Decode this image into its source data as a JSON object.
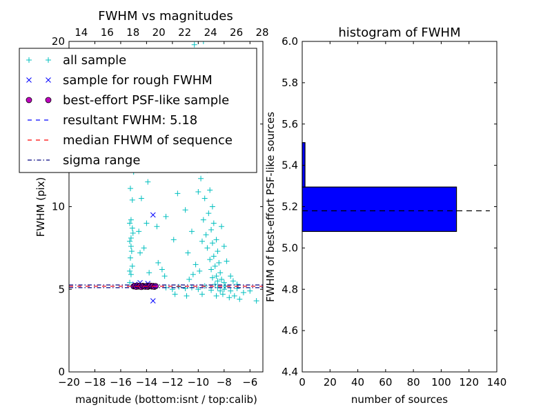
{
  "chart_data": [
    {
      "type": "scatter",
      "title": "FWHM vs magnitudes",
      "xlabel": "magnitude (bottom:isnt / top:calib)",
      "ylabel": "FWHM (pix)",
      "xlim": [
        -20,
        -5
      ],
      "ylim": [
        0,
        20
      ],
      "xticks": [
        "−20",
        "−18",
        "−16",
        "−14",
        "−12",
        "−10",
        "−8",
        "−6"
      ],
      "xtick_values": [
        -20,
        -18,
        -16,
        -14,
        -12,
        -10,
        -8,
        -6
      ],
      "yticks": [
        "0",
        "5",
        "10",
        "15",
        "20"
      ],
      "ytick_values": [
        0,
        5,
        10,
        15,
        20
      ],
      "top_xticks": [
        "14",
        "16",
        "18",
        "20",
        "22",
        "24",
        "26",
        "28"
      ],
      "top_xtick_values": [
        14,
        16,
        18,
        20,
        22,
        24,
        26,
        28
      ],
      "top_offset": 33.05,
      "grid": false,
      "legend_position": "upper-left (outside, overlapping)",
      "legend": [
        {
          "label": "all sample",
          "marker": "plus",
          "color": "#00BFBF"
        },
        {
          "label": "sample for rough FWHM",
          "marker": "x",
          "color": "#0000FF"
        },
        {
          "label": "best-effort PSF-like sample",
          "marker": "circle",
          "color": "#BF00BF"
        },
        {
          "label": "resultant FWHM: 5.18",
          "marker": "dash",
          "color": "#0000FF"
        },
        {
          "label": "median FHWM of sequence",
          "marker": "dash",
          "color": "#FF0000"
        },
        {
          "label": "sigma range",
          "marker": "dashdot",
          "color": "#000080"
        }
      ],
      "series": [
        {
          "name": "all sample",
          "color": "#00BFBF",
          "points": [
            [
              -15.3,
              5.4
            ],
            [
              -15.2,
              5.9
            ],
            [
              -15.1,
              6.4
            ],
            [
              -15.25,
              6.9
            ],
            [
              -15.15,
              7.3
            ],
            [
              -15.3,
              7.9
            ],
            [
              -15.2,
              8.1
            ],
            [
              -15.05,
              8.4
            ],
            [
              -15.3,
              9.0
            ],
            [
              -15.2,
              9.2
            ],
            [
              -15.1,
              10.4
            ],
            [
              -15.25,
              11.1
            ],
            [
              -15.0,
              12.1
            ],
            [
              -15.2,
              12.6
            ],
            [
              -15.1,
              13.6
            ],
            [
              -15.2,
              14.4
            ],
            [
              -15.0,
              15.4
            ],
            [
              -15.3,
              6.1
            ],
            [
              -15.2,
              7.6
            ],
            [
              -15.1,
              8.7
            ],
            [
              -14.2,
              7.5
            ],
            [
              -14.0,
              9.0
            ],
            [
              -13.8,
              6.0
            ],
            [
              -14.4,
              10.5
            ],
            [
              -13.6,
              13.0
            ],
            [
              -13.2,
              8.8
            ],
            [
              -14.6,
              8.5
            ],
            [
              -13.9,
              11.5
            ],
            [
              -12.8,
              6.2
            ],
            [
              -12.6,
              5.8
            ],
            [
              -14.5,
              7.2
            ],
            [
              -13.3,
              15.0
            ],
            [
              -12.2,
              12.5
            ],
            [
              -11.6,
              10.8
            ],
            [
              -12.5,
              9.4
            ],
            [
              -11.2,
              14.0
            ],
            [
              -11.9,
              8.0
            ],
            [
              -13.1,
              6.6
            ],
            [
              -14.8,
              16.5
            ],
            [
              -12.9,
              17.2
            ],
            [
              -10.3,
              19.8
            ],
            [
              -9.6,
              20.0
            ],
            [
              -9.9,
              18.0
            ],
            [
              -9.2,
              17.5
            ],
            [
              -9.5,
              16.0
            ],
            [
              -10.1,
              15.2
            ],
            [
              -9.4,
              14.5
            ],
            [
              -9.7,
              13.8
            ],
            [
              -9.0,
              13.0
            ],
            [
              -9.3,
              12.2
            ],
            [
              -9.8,
              11.7
            ],
            [
              -9.1,
              11.0
            ],
            [
              -9.5,
              10.5
            ],
            [
              -8.9,
              10.0
            ],
            [
              -9.2,
              9.6
            ],
            [
              -9.6,
              9.2
            ],
            [
              -8.8,
              9.0
            ],
            [
              -9.0,
              8.6
            ],
            [
              -9.4,
              8.3
            ],
            [
              -8.6,
              8.0
            ],
            [
              -8.9,
              7.8
            ],
            [
              -9.3,
              7.5
            ],
            [
              -8.5,
              7.3
            ],
            [
              -8.8,
              7.0
            ],
            [
              -9.1,
              6.8
            ],
            [
              -8.4,
              6.6
            ],
            [
              -8.7,
              6.4
            ],
            [
              -9.0,
              6.2
            ],
            [
              -8.3,
              6.0
            ],
            [
              -8.6,
              5.8
            ],
            [
              -8.9,
              5.7
            ],
            [
              -8.2,
              5.6
            ],
            [
              -8.5,
              5.5
            ],
            [
              -8.0,
              5.4
            ],
            [
              -8.7,
              5.3
            ],
            [
              -7.9,
              5.2
            ],
            [
              -8.3,
              4.9
            ],
            [
              -8.1,
              4.7
            ],
            [
              -8.6,
              4.6
            ],
            [
              -7.6,
              4.5
            ],
            [
              -10.5,
              8.5
            ],
            [
              -10.8,
              7.2
            ],
            [
              -10.2,
              6.5
            ],
            [
              -10.6,
              12.8
            ],
            [
              -11.0,
              9.8
            ],
            [
              -10.0,
              10.9
            ],
            [
              -9.7,
              7.9
            ],
            [
              -10.4,
              5.9
            ],
            [
              -9.9,
              6.1
            ],
            [
              -10.7,
              5.6
            ],
            [
              -7.5,
              5.8
            ],
            [
              -7.8,
              6.7
            ],
            [
              -7.3,
              5.5
            ],
            [
              -7.0,
              5.3
            ],
            [
              -8.2,
              8.8
            ],
            [
              -8.0,
              7.6
            ],
            [
              -9.8,
              15.7
            ],
            [
              -9.3,
              18.7
            ],
            [
              -8.9,
              16.8
            ],
            [
              -9.6,
              12.5
            ],
            [
              -12.5,
              5.1
            ],
            [
              -12.0,
              5.0
            ],
            [
              -11.5,
              5.15
            ],
            [
              -11.0,
              5.05
            ],
            [
              -10.5,
              5.1
            ],
            [
              -10.0,
              5.0
            ],
            [
              -9.5,
              5.2
            ],
            [
              -9.0,
              4.95
            ],
            [
              -8.5,
              5.1
            ],
            [
              -8.0,
              5.0
            ],
            [
              -7.5,
              4.9
            ],
            [
              -7.0,
              5.05
            ],
            [
              -6.5,
              4.8
            ],
            [
              -6.0,
              4.9
            ],
            [
              -5.5,
              4.3
            ],
            [
              -11.8,
              4.7
            ],
            [
              -10.9,
              4.6
            ],
            [
              -9.7,
              4.7
            ],
            [
              -7.2,
              4.6
            ],
            [
              -6.8,
              4.4
            ]
          ]
        },
        {
          "name": "sample for rough FWHM",
          "color": "#0000FF",
          "points": [
            [
              -13.5,
              9.5
            ],
            [
              -13.5,
              4.3
            ],
            [
              -14.5,
              5.4
            ],
            [
              -13.9,
              5.35
            ],
            [
              -14.9,
              5.3
            ]
          ]
        },
        {
          "name": "best-effort PSF-like sample",
          "color": "#BF00BF",
          "points": [
            [
              -15.0,
              5.18
            ],
            [
              -14.9,
              5.2
            ],
            [
              -14.8,
              5.15
            ],
            [
              -14.7,
              5.22
            ],
            [
              -14.6,
              5.17
            ],
            [
              -14.5,
              5.2
            ],
            [
              -14.4,
              5.14
            ],
            [
              -14.3,
              5.21
            ],
            [
              -14.2,
              5.18
            ],
            [
              -14.1,
              5.16
            ],
            [
              -14.0,
              5.2
            ],
            [
              -13.9,
              5.15
            ],
            [
              -13.8,
              5.19
            ],
            [
              -13.7,
              5.22
            ],
            [
              -13.6,
              5.17
            ],
            [
              -13.5,
              5.2
            ],
            [
              -13.4,
              5.15
            ],
            [
              -13.3,
              5.19
            ]
          ]
        }
      ],
      "hlines": [
        {
          "name": "resultant FWHM",
          "y": 5.18,
          "color": "#0000FF",
          "style": "dashed"
        },
        {
          "name": "median FHWM of sequence",
          "y": 5.18,
          "color": "#FF0000",
          "style": "dashed"
        },
        {
          "name": "sigma range low",
          "y": 5.1,
          "color": "#000080",
          "style": "dashdot"
        },
        {
          "name": "sigma range high",
          "y": 5.26,
          "color": "#000080",
          "style": "dashdot"
        }
      ]
    },
    {
      "type": "bar",
      "orientation": "horizontal",
      "title": "histogram of FWHM",
      "xlabel": "number of sources",
      "ylabel": "FWHM of best-effort PSF-like sources",
      "xlim": [
        0,
        140
      ],
      "ylim": [
        4.4,
        6.0
      ],
      "xticks": [
        "0",
        "20",
        "40",
        "60",
        "80",
        "100",
        "120",
        "140"
      ],
      "xtick_values": [
        0,
        20,
        40,
        60,
        80,
        100,
        120,
        140
      ],
      "yticks": [
        "4.4",
        "4.6",
        "4.8",
        "5.0",
        "5.2",
        "5.4",
        "5.6",
        "5.8",
        "6.0"
      ],
      "ytick_values": [
        4.4,
        4.6,
        4.8,
        5.0,
        5.2,
        5.4,
        5.6,
        5.8,
        6.0
      ],
      "bins": [
        [
          5.08,
          5.295
        ],
        [
          5.295,
          5.51
        ]
      ],
      "values": [
        111,
        2
      ],
      "color": "#0000FF",
      "hline": {
        "y": 5.18,
        "xmax": 135,
        "color": "#000000",
        "style": "dashed"
      }
    }
  ]
}
